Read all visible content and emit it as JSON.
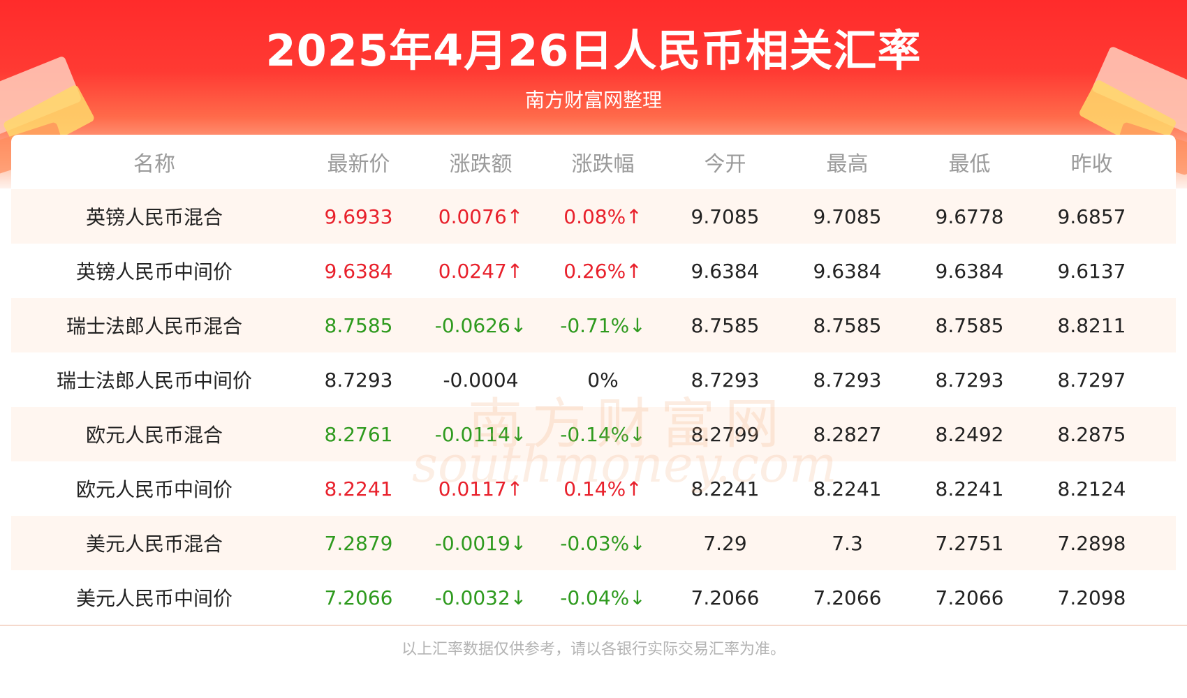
{
  "header": {
    "title": "2025年4月26日人民币相关汇率",
    "subtitle": "南方财富网整理"
  },
  "table": {
    "columns": [
      "名称",
      "最新价",
      "涨跌额",
      "涨跌幅",
      "今开",
      "最高",
      "最低",
      "昨收"
    ],
    "rows": [
      {
        "name": "英镑人民币混合",
        "latest": "9.6933",
        "change": "0.0076↑",
        "pct": "0.08%↑",
        "open": "9.7085",
        "high": "9.7085",
        "low": "9.6778",
        "prev": "9.6857",
        "trend": "up"
      },
      {
        "name": "英镑人民币中间价",
        "latest": "9.6384",
        "change": "0.0247↑",
        "pct": "0.26%↑",
        "open": "9.6384",
        "high": "9.6384",
        "low": "9.6384",
        "prev": "9.6137",
        "trend": "up"
      },
      {
        "name": "瑞士法郎人民币混合",
        "latest": "8.7585",
        "change": "-0.0626↓",
        "pct": "-0.71%↓",
        "open": "8.7585",
        "high": "8.7585",
        "low": "8.7585",
        "prev": "8.8211",
        "trend": "down"
      },
      {
        "name": "瑞士法郎人民币中间价",
        "latest": "8.7293",
        "change": "-0.0004",
        "pct": "0%",
        "open": "8.7293",
        "high": "8.7293",
        "low": "8.7293",
        "prev": "8.7297",
        "trend": "flat"
      },
      {
        "name": "欧元人民币混合",
        "latest": "8.2761",
        "change": "-0.0114↓",
        "pct": "-0.14%↓",
        "open": "8.2799",
        "high": "8.2827",
        "low": "8.2492",
        "prev": "8.2875",
        "trend": "down"
      },
      {
        "name": "欧元人民币中间价",
        "latest": "8.2241",
        "change": "0.0117↑",
        "pct": "0.14%↑",
        "open": "8.2241",
        "high": "8.2241",
        "low": "8.2241",
        "prev": "8.2124",
        "trend": "up"
      },
      {
        "name": "美元人民币混合",
        "latest": "7.2879",
        "change": "-0.0019↓",
        "pct": "-0.03%↓",
        "open": "7.29",
        "high": "7.3",
        "low": "7.2751",
        "prev": "7.2898",
        "trend": "down"
      },
      {
        "name": "美元人民币中间价",
        "latest": "7.2066",
        "change": "-0.0032↓",
        "pct": "-0.04%↓",
        "open": "7.2066",
        "high": "7.2066",
        "low": "7.2066",
        "prev": "7.2098",
        "trend": "down"
      }
    ]
  },
  "watermark": {
    "cn": "南方财富网",
    "en": "southmoney.com"
  },
  "footer": {
    "note": "以上汇率数据仅供参考，请以各银行实际交易汇率为准。"
  },
  "colors": {
    "up": "#e8202b",
    "down": "#2e9a1e",
    "banner": "#ff2b2b"
  }
}
